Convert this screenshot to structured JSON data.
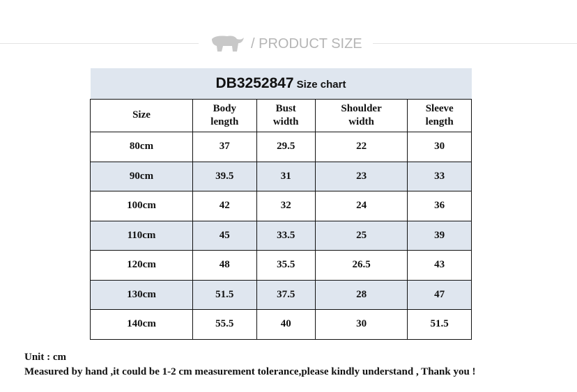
{
  "banner": {
    "icon": "elephant-icon",
    "text": "/ PRODUCT SIZE"
  },
  "table": {
    "code": "DB3252847",
    "subtitle": "Size chart",
    "headers": [
      [
        "Size"
      ],
      [
        "Body",
        "length"
      ],
      [
        "Bust",
        "width"
      ],
      [
        "Shoulder",
        "width"
      ],
      [
        "Sleeve",
        "length"
      ]
    ],
    "rows": [
      [
        "80cm",
        "37",
        "29.5",
        "22",
        "30"
      ],
      [
        "90cm",
        "39.5",
        "31",
        "23",
        "33"
      ],
      [
        "100cm",
        "42",
        "32",
        "24",
        "36"
      ],
      [
        "110cm",
        "45",
        "33.5",
        "25",
        "39"
      ],
      [
        "120cm",
        "48",
        "35.5",
        "26.5",
        "43"
      ],
      [
        "130cm",
        "51.5",
        "37.5",
        "28",
        "47"
      ],
      [
        "140cm",
        "55.5",
        "40",
        "30",
        "51.5"
      ]
    ],
    "shade_color": "#dfe6ef"
  },
  "notes": {
    "unit": "Unit : cm",
    "disclaimer": "Measured by hand ,it could be 1-2 cm measurement tolerance,please kindly understand , Thank you !"
  }
}
